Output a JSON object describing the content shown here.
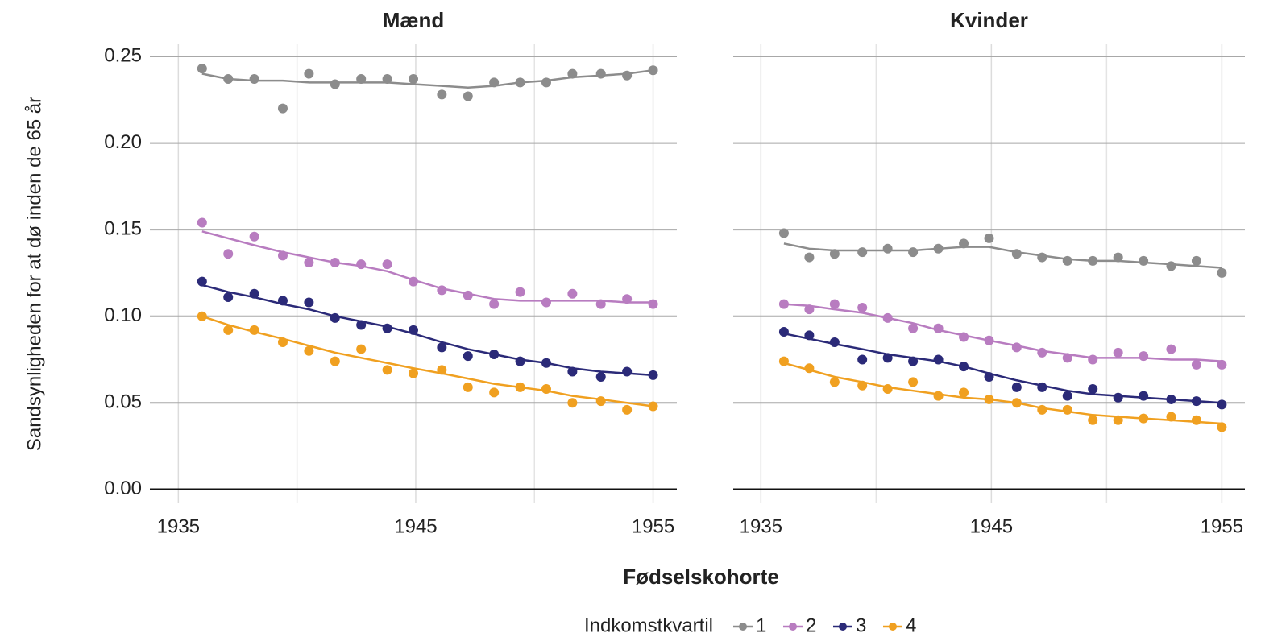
{
  "xlabel": "Fødselskohorte",
  "ylabel": "Sandsynligheden for at dø inden de 65 år",
  "legend_title": "Indkomstkvartil",
  "chart_data": [
    {
      "type": "scatter",
      "title": "Mænd",
      "x": [
        1936.0,
        1937.1,
        1938.2,
        1939.4,
        1940.5,
        1941.6,
        1942.7,
        1943.8,
        1944.9,
        1946.1,
        1947.2,
        1948.3,
        1949.4,
        1950.5,
        1951.6,
        1952.8,
        1953.9,
        1955.0
      ],
      "xlim": [
        1933.8,
        1956.0
      ],
      "xticks": [
        1935,
        1945,
        1955
      ],
      "xminor": [
        1940,
        1950
      ],
      "ylim": [
        -0.008,
        0.257
      ],
      "yticks": [
        {
          "value": 0,
          "label": "0.00"
        },
        0.05,
        {
          "value": 0.1,
          "label": "0.10"
        },
        0.15,
        {
          "value": 0.2,
          "label": "0.20"
        },
        0.25
      ],
      "grid": true,
      "series": [
        {
          "name": "1",
          "color": "#8c8c8c",
          "values": [
            0.243,
            0.237,
            0.237,
            0.22,
            0.24,
            0.234,
            0.237,
            0.237,
            0.237,
            0.228,
            0.227,
            0.235,
            0.235,
            0.235,
            0.24,
            0.24,
            0.239,
            0.242
          ],
          "trend": [
            0.24,
            0.237,
            0.236,
            0.236,
            0.235,
            0.235,
            0.235,
            0.235,
            0.234,
            0.233,
            0.232,
            0.233,
            0.235,
            0.236,
            0.238,
            0.239,
            0.24,
            0.242
          ]
        },
        {
          "name": "2",
          "color": "#b87cc0",
          "values": [
            0.154,
            0.136,
            0.146,
            0.135,
            0.131,
            0.131,
            0.13,
            0.13,
            0.12,
            0.115,
            0.112,
            0.107,
            0.114,
            0.108,
            0.113,
            0.107,
            0.11,
            0.107
          ],
          "trend": [
            0.149,
            0.145,
            0.141,
            0.137,
            0.134,
            0.131,
            0.129,
            0.126,
            0.121,
            0.116,
            0.113,
            0.11,
            0.109,
            0.109,
            0.109,
            0.109,
            0.108,
            0.108
          ]
        },
        {
          "name": "3",
          "color": "#2b2a78",
          "values": [
            0.12,
            0.111,
            0.113,
            0.109,
            0.108,
            0.099,
            0.095,
            0.093,
            0.092,
            0.082,
            0.077,
            0.078,
            0.074,
            0.073,
            0.068,
            0.065,
            0.068,
            0.066
          ],
          "trend": [
            0.118,
            0.114,
            0.111,
            0.107,
            0.104,
            0.1,
            0.097,
            0.094,
            0.09,
            0.085,
            0.081,
            0.078,
            0.075,
            0.073,
            0.07,
            0.068,
            0.067,
            0.066
          ]
        },
        {
          "name": "4",
          "color": "#f0a020",
          "values": [
            0.1,
            0.092,
            0.092,
            0.085,
            0.08,
            0.074,
            0.081,
            0.069,
            0.067,
            0.069,
            0.059,
            0.056,
            0.059,
            0.058,
            0.05,
            0.051,
            0.046,
            0.048
          ],
          "trend": [
            0.1,
            0.095,
            0.091,
            0.087,
            0.083,
            0.079,
            0.076,
            0.073,
            0.07,
            0.067,
            0.064,
            0.061,
            0.059,
            0.057,
            0.054,
            0.052,
            0.05,
            0.048
          ]
        }
      ]
    },
    {
      "type": "scatter",
      "title": "Kvinder",
      "x": [
        1936.0,
        1937.1,
        1938.2,
        1939.4,
        1940.5,
        1941.6,
        1942.7,
        1943.8,
        1944.9,
        1946.1,
        1947.2,
        1948.3,
        1949.4,
        1950.5,
        1951.6,
        1952.8,
        1953.9,
        1955.0
      ],
      "xlim": [
        1933.8,
        1956.0
      ],
      "xticks": [
        1935,
        1945,
        1955
      ],
      "xminor": [
        1940,
        1950
      ],
      "ylim": [
        -0.008,
        0.257
      ],
      "yticks": [
        {
          "value": 0,
          "label": "0.00"
        },
        0.05,
        {
          "value": 0.1,
          "label": "0.10"
        },
        0.15,
        {
          "value": 0.2,
          "label": "0.20"
        },
        0.25
      ],
      "grid": true,
      "series": [
        {
          "name": "1",
          "color": "#8c8c8c",
          "values": [
            0.148,
            0.134,
            0.136,
            0.137,
            0.139,
            0.137,
            0.139,
            0.142,
            0.145,
            0.136,
            0.134,
            0.132,
            0.132,
            0.134,
            0.132,
            0.129,
            0.132,
            0.125
          ],
          "trend": [
            0.142,
            0.139,
            0.138,
            0.138,
            0.138,
            0.138,
            0.139,
            0.14,
            0.14,
            0.137,
            0.135,
            0.133,
            0.132,
            0.132,
            0.131,
            0.13,
            0.129,
            0.128
          ]
        },
        {
          "name": "2",
          "color": "#b87cc0",
          "values": [
            0.107,
            0.104,
            0.107,
            0.105,
            0.099,
            0.093,
            0.093,
            0.088,
            0.086,
            0.082,
            0.079,
            0.076,
            0.075,
            0.079,
            0.077,
            0.081,
            0.072,
            0.072
          ],
          "trend": [
            0.107,
            0.106,
            0.104,
            0.102,
            0.099,
            0.096,
            0.092,
            0.089,
            0.086,
            0.083,
            0.08,
            0.078,
            0.076,
            0.076,
            0.076,
            0.075,
            0.075,
            0.074
          ]
        },
        {
          "name": "3",
          "color": "#2b2a78",
          "values": [
            0.091,
            0.089,
            0.085,
            0.075,
            0.076,
            0.074,
            0.075,
            0.071,
            0.065,
            0.059,
            0.059,
            0.054,
            0.058,
            0.053,
            0.054,
            0.052,
            0.051,
            0.049
          ],
          "trend": [
            0.09,
            0.087,
            0.084,
            0.081,
            0.078,
            0.076,
            0.074,
            0.071,
            0.067,
            0.063,
            0.06,
            0.057,
            0.055,
            0.054,
            0.053,
            0.052,
            0.051,
            0.05
          ]
        },
        {
          "name": "4",
          "color": "#f0a020",
          "values": [
            0.074,
            0.07,
            0.062,
            0.06,
            0.058,
            0.062,
            0.054,
            0.056,
            0.052,
            0.05,
            0.046,
            0.046,
            0.04,
            0.04,
            0.041,
            0.042,
            0.04,
            0.036
          ],
          "trend": [
            0.073,
            0.069,
            0.065,
            0.062,
            0.059,
            0.057,
            0.055,
            0.053,
            0.052,
            0.05,
            0.047,
            0.045,
            0.043,
            0.042,
            0.041,
            0.04,
            0.039,
            0.038
          ]
        }
      ]
    }
  ]
}
